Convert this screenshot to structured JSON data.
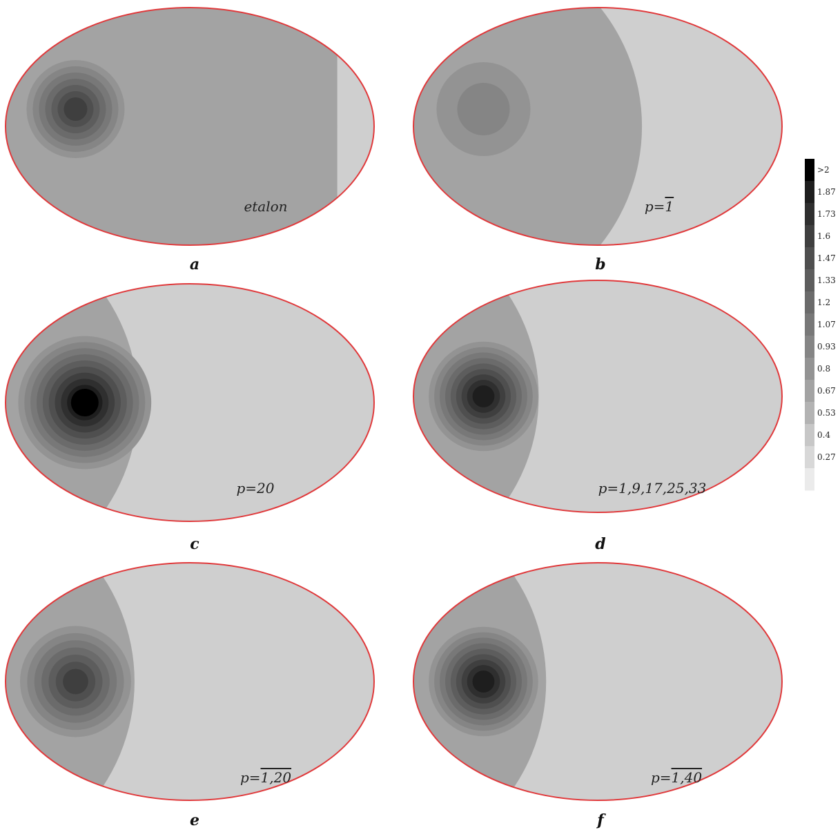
{
  "panels": [
    {
      "label": "a",
      "caption": "etalon",
      "caption_overline": "",
      "region_boundary": 0.9,
      "peak_level": 1.6,
      "spread": 1.0,
      "background_level": 0.67,
      "right_level": 0.4
    },
    {
      "label": "b",
      "caption": "p=",
      "caption_overline": "1",
      "region_boundary": 0.62,
      "peak_level": 0.93,
      "spread": 1.25,
      "background_level": 0.67,
      "right_level": 0.4
    },
    {
      "label": "c",
      "caption": "p=20",
      "caption_overline": "",
      "region_boundary": 0.36,
      "peak_level": 2.1,
      "spread": 1.35,
      "background_level": 0.67,
      "right_level": 0.4
    },
    {
      "label": "d",
      "caption": "p=1,9,17,25,33",
      "caption_overline": "",
      "region_boundary": 0.34,
      "peak_level": 1.9,
      "spread": 1.1,
      "background_level": 0.67,
      "right_level": 0.4
    },
    {
      "label": "e",
      "caption": "p=",
      "caption_overline": "1,20",
      "region_boundary": 0.35,
      "peak_level": 1.6,
      "spread": 1.15,
      "background_level": 0.67,
      "right_level": 0.4
    },
    {
      "label": "f",
      "caption": "p=",
      "caption_overline": "1,40",
      "region_boundary": 0.36,
      "peak_level": 1.87,
      "spread": 1.1,
      "background_level": 0.67,
      "right_level": 0.4
    }
  ],
  "colorbar": {
    "ticks": [
      ">2",
      "1.87",
      "1.73",
      "1.6",
      "1.47",
      "1.33",
      "1.2",
      "1.07",
      "0.93",
      "0.8",
      "0.67",
      "0.53",
      "0.4",
      "0.27"
    ],
    "levels": [
      2.0,
      1.87,
      1.73,
      1.6,
      1.47,
      1.33,
      1.2,
      1.07,
      0.93,
      0.8,
      0.67,
      0.53,
      0.4,
      0.27,
      0.13
    ],
    "colors": [
      "#000000",
      "#1e1e1e",
      "#2f2f2f",
      "#3f3f3f",
      "#4f4f4f",
      "#5d5d5d",
      "#6b6b6b",
      "#787878",
      "#858585",
      "#939393",
      "#a3a3a3",
      "#b3b3b3",
      "#c7c7c7",
      "#d8d8d8",
      "#ebebeb"
    ]
  },
  "colors": {
    "outline": "#e0393b",
    "bg_left": "#bdbdbd",
    "bg_right": "#cfcfcf"
  }
}
